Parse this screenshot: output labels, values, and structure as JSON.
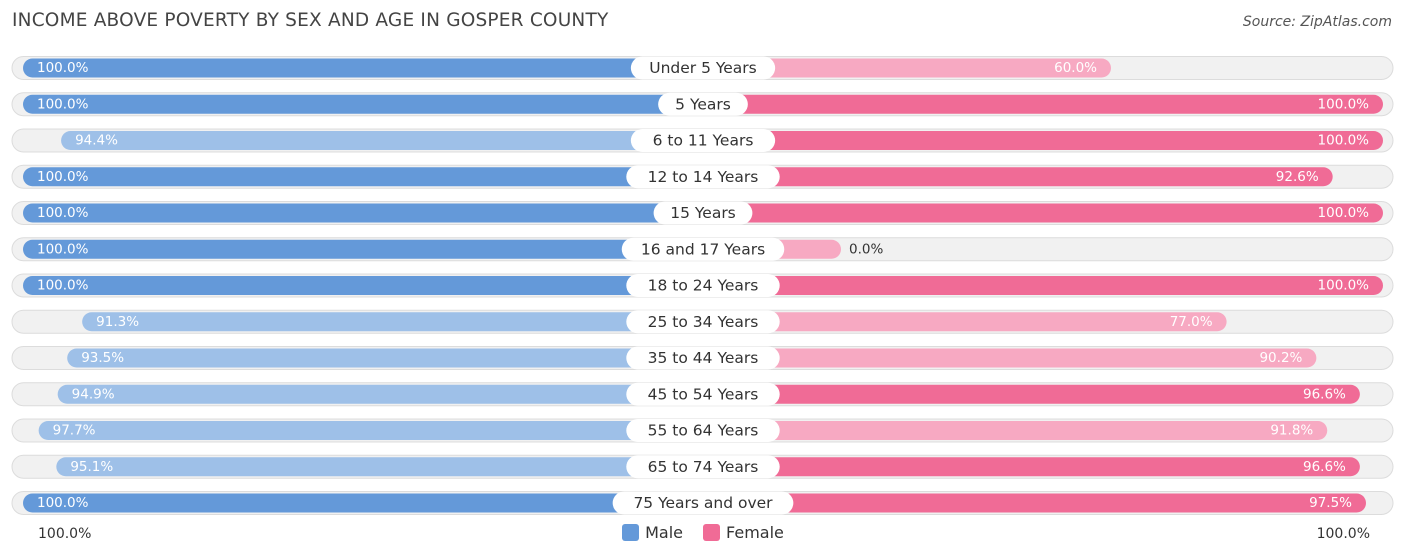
{
  "title": "INCOME ABOVE POVERTY BY SEX AND AGE IN GOSPER COUNTY",
  "source": "Source: ZipAtlas.com",
  "chart_data": {
    "type": "bar",
    "orientation": "horizontal-diverging",
    "categories": [
      "Under 5 Years",
      "5 Years",
      "6 to 11 Years",
      "12 to 14 Years",
      "15 Years",
      "16 and 17 Years",
      "18 to 24 Years",
      "25 to 34 Years",
      "35 to 44 Years",
      "45 to 54 Years",
      "55 to 64 Years",
      "65 to 74 Years",
      "75 Years and over"
    ],
    "series": [
      {
        "name": "Male",
        "values": [
          100.0,
          100.0,
          94.4,
          100.0,
          100.0,
          100.0,
          100.0,
          91.3,
          93.5,
          94.9,
          97.7,
          95.1,
          100.0
        ],
        "labels": [
          "100.0%",
          "100.0%",
          "94.4%",
          "100.0%",
          "100.0%",
          "100.0%",
          "100.0%",
          "91.3%",
          "93.5%",
          "94.9%",
          "97.7%",
          "95.1%",
          "100.0%"
        ]
      },
      {
        "name": "Female",
        "values": [
          60.0,
          100.0,
          100.0,
          92.6,
          100.0,
          0.0,
          100.0,
          77.0,
          90.2,
          96.6,
          91.8,
          96.6,
          97.5
        ],
        "labels": [
          "60.0%",
          "100.0%",
          "100.0%",
          "92.6%",
          "100.0%",
          "0.0%",
          "100.0%",
          "77.0%",
          "90.2%",
          "96.6%",
          "91.8%",
          "96.6%",
          "97.5%"
        ]
      }
    ],
    "xlim": [
      0,
      100
    ],
    "axis_left_label": "100.0%",
    "axis_right_label": "100.0%",
    "legend": [
      "Male",
      "Female"
    ],
    "legend_position": "bottom-center"
  },
  "colors": {
    "male_strong": "#6499d9",
    "male_light": "#9ec0e8",
    "female_strong": "#f06b96",
    "female_light": "#f7a9c2",
    "track": "#f1f1f1",
    "track_border": "#dcdcdc",
    "label_dark": "#333333",
    "label_white": "#ffffff"
  }
}
